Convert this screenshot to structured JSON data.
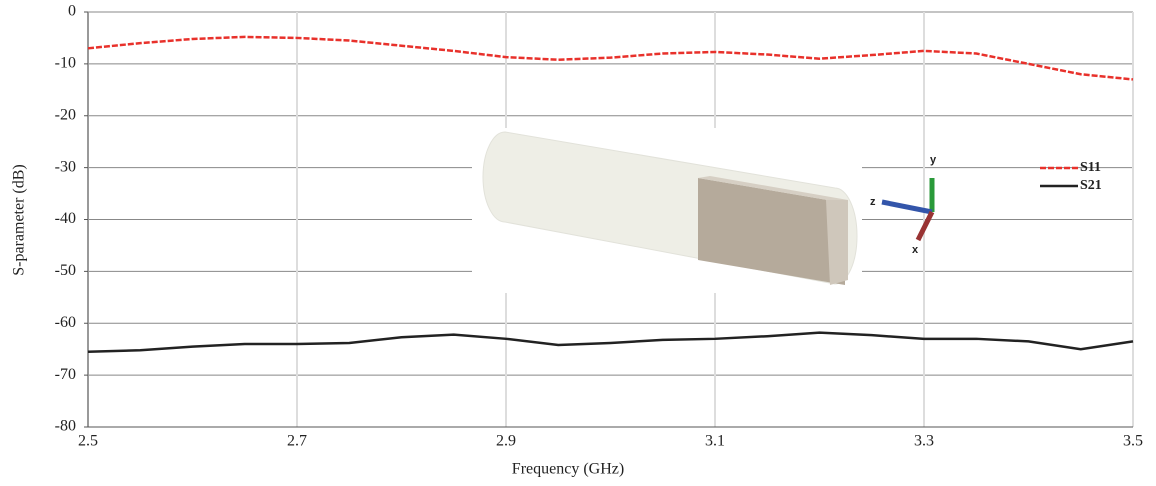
{
  "chart_data": {
    "type": "line",
    "x_label": "Frequency (GHz)",
    "y_label": "S-parameter (dB)",
    "x": [
      2.5,
      2.55,
      2.6,
      2.65,
      2.7,
      2.75,
      2.8,
      2.85,
      2.9,
      2.95,
      3.0,
      3.05,
      3.1,
      3.15,
      3.2,
      3.25,
      3.3,
      3.35,
      3.4,
      3.45,
      3.5
    ],
    "series": [
      {
        "name": "S11",
        "color": "#e8312b",
        "style": "dashed",
        "values": [
          -7,
          -6,
          -5.2,
          -4.8,
          -5,
          -5.5,
          -6.5,
          -7.5,
          -8.7,
          -9.2,
          -8.8,
          -8,
          -7.7,
          -8.2,
          -9,
          -8.3,
          -7.5,
          -8,
          -10,
          -12,
          -13
        ]
      },
      {
        "name": "S21",
        "color": "#222222",
        "style": "solid",
        "values": [
          -65.5,
          -65.2,
          -64.5,
          -64,
          -64,
          -63.8,
          -62.7,
          -62.2,
          -63,
          -64.2,
          -63.8,
          -63.2,
          -63,
          -62.5,
          -61.8,
          -62.3,
          -63,
          -63,
          -63.5,
          -65,
          -63.5
        ]
      }
    ],
    "xlim": [
      2.5,
      3.5
    ],
    "xticks": [
      2.5,
      2.7,
      2.9,
      3.1,
      3.3,
      3.5
    ],
    "ylim": [
      -80,
      0
    ],
    "yticks": [
      0,
      -10,
      -20,
      -30,
      -40,
      -50,
      -60,
      -70,
      -80
    ],
    "grid": true,
    "legend": "right",
    "annotations": [
      "y",
      "z",
      "x"
    ]
  }
}
